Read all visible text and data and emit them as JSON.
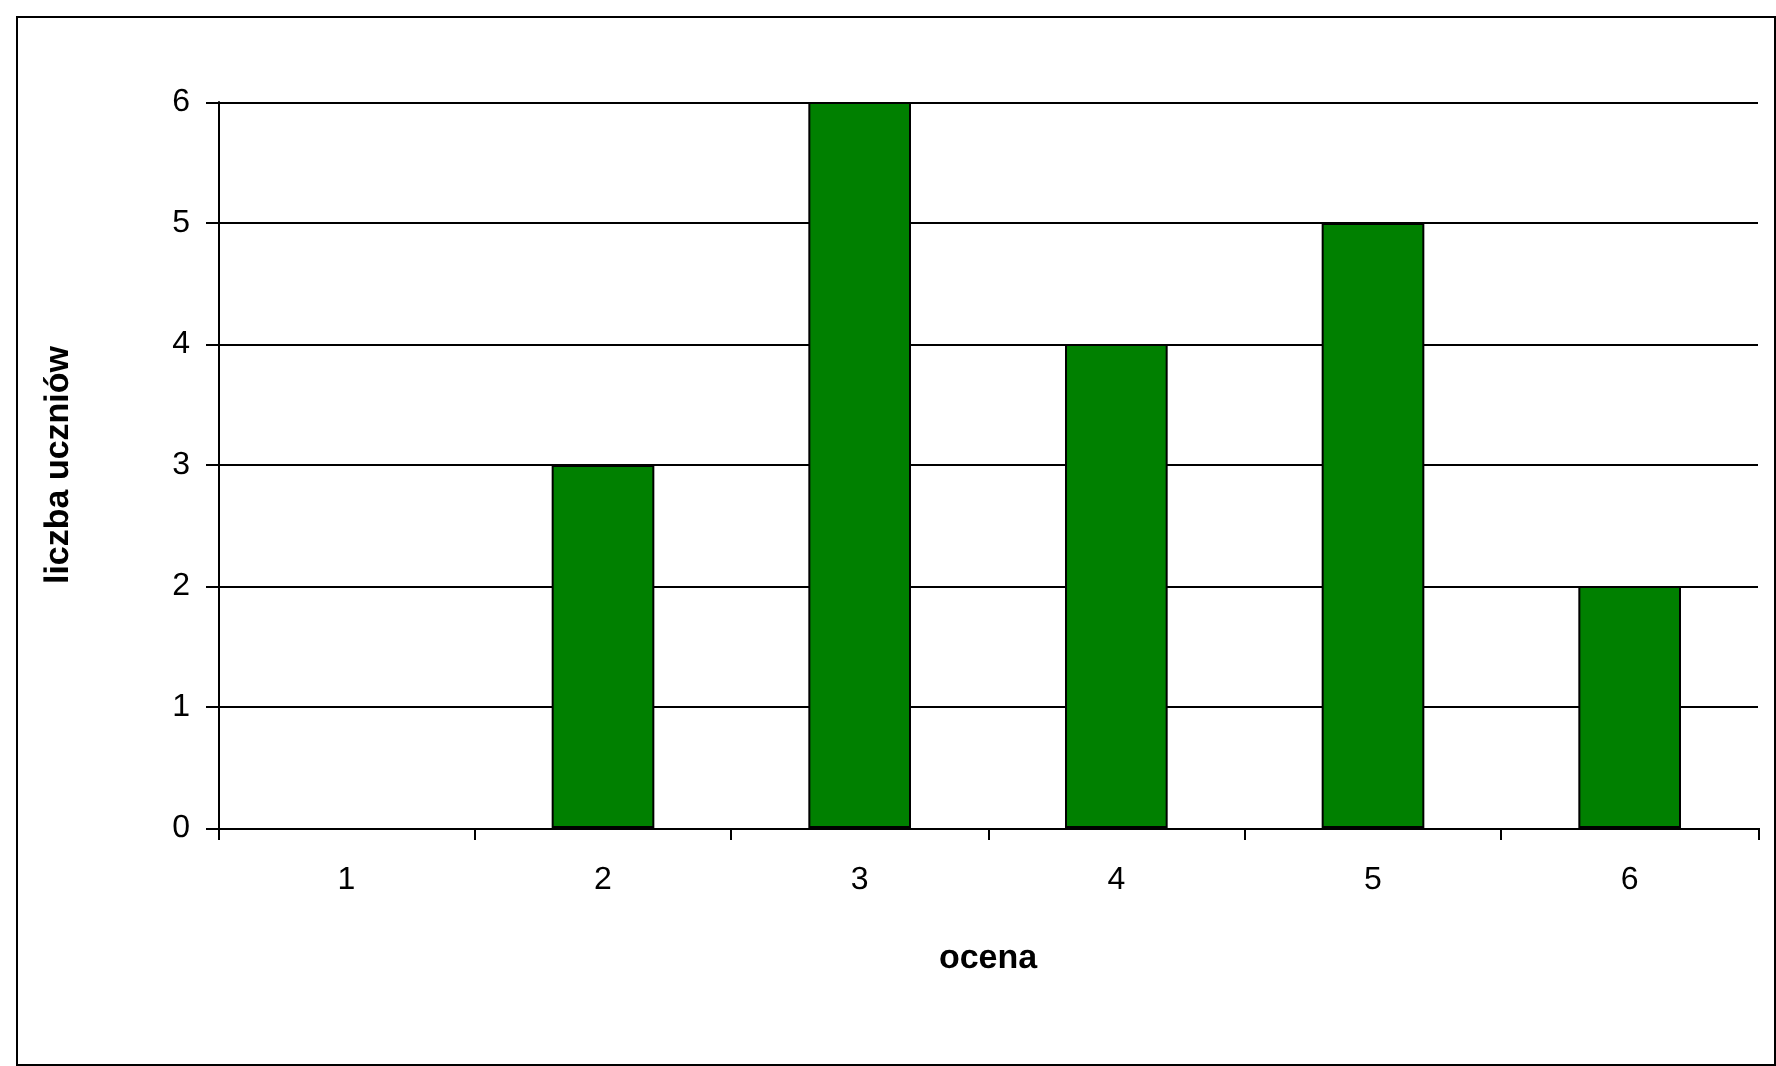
{
  "chart_data": {
    "type": "bar",
    "xlabel": "ocena",
    "ylabel": "liczba uczniów",
    "categories": [
      "1",
      "2",
      "3",
      "4",
      "5",
      "6"
    ],
    "values": [
      0,
      3,
      6,
      4,
      5,
      2
    ],
    "color": "#008000",
    "ylim": [
      0,
      6
    ],
    "yticks": [
      0,
      1,
      2,
      3,
      4,
      5,
      6
    ],
    "grid": "y"
  }
}
